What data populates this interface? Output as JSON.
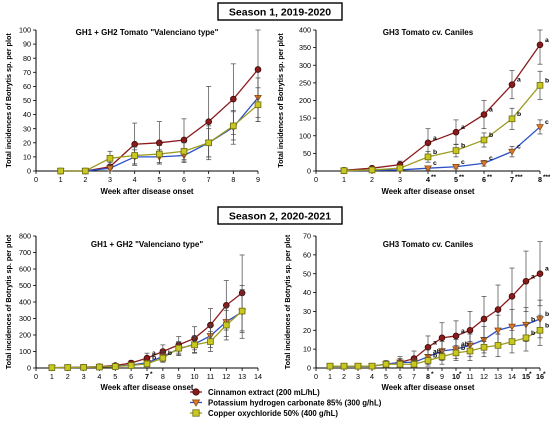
{
  "figure": {
    "season1_label": "Season 1, 2019-2020",
    "season2_label": "Season 2, 2020-2021",
    "legend": [
      {
        "label": "Cinnamon extract (200 mL/hL)",
        "color": "#8b1a1a",
        "marker": "circle"
      },
      {
        "label": "Potassium hydrogen carbonate 85% (300 g/hL)",
        "color": "#e07b28",
        "marker": "triangle-down"
      },
      {
        "label": "Copper oxychloride 50% (400 g/hL)",
        "color": "#c8c820",
        "marker": "square"
      }
    ],
    "colors": {
      "cinnamon": "#8b1a1a",
      "khco3_line": "#2b4fc9",
      "khco3_marker": "#e07b28",
      "copper_line": "#9c9c20",
      "copper_marker": "#c8c820",
      "error_bar": "#444444",
      "season_box_border": "#000000"
    }
  },
  "chart_data": [
    {
      "type": "line",
      "title": "GH1 + GH2 Tomato \"Valenciano type\"",
      "xlabel": "Week after disease onset",
      "ylabel": "Total incidences of Botrytis sp. per plot",
      "xlim": [
        0,
        9
      ],
      "ylim": [
        0,
        100
      ],
      "xticks": [
        "0",
        "1",
        "2",
        "3",
        "4",
        "5",
        "6",
        "7",
        "8",
        "9"
      ],
      "yticks": [
        "0",
        "10",
        "20",
        "30",
        "40",
        "50",
        "60",
        "70",
        "80",
        "90",
        "100"
      ],
      "x": [
        1,
        2,
        3,
        4,
        5,
        6,
        7,
        8,
        9
      ],
      "series": [
        {
          "name": "Cinnamon extract (200 mL/hL)",
          "values": [
            0,
            0,
            3,
            19,
            20,
            22,
            35,
            51,
            72
          ],
          "err": [
            0,
            0,
            3,
            15,
            15,
            15,
            25,
            25,
            37
          ]
        },
        {
          "name": "Potassium hydrogen carbonate 85% (300 g/hL)",
          "values": [
            0,
            0,
            2,
            10,
            10,
            11,
            20,
            31,
            52
          ],
          "err": [
            0,
            0,
            2,
            5,
            5,
            5,
            12,
            12,
            14
          ]
        },
        {
          "name": "Copper oxychloride 50% (400 g/hL)",
          "values": [
            0,
            0,
            9,
            11,
            12,
            14,
            20,
            32,
            47
          ],
          "err": [
            0,
            0,
            5,
            6,
            6,
            6,
            10,
            10,
            12
          ]
        }
      ],
      "annotations": []
    },
    {
      "type": "line",
      "title": "GH3 Tomato cv. Caniles",
      "xlabel": "Week after disease onset",
      "ylabel": "Total incidences of Botrytis sp. per plot",
      "xlim": [
        0,
        8
      ],
      "ylim": [
        0,
        400
      ],
      "xticks": [
        "0",
        "1",
        "2",
        "3",
        "4",
        "5",
        "6",
        "7",
        "8"
      ],
      "yticks": [
        "0",
        "50",
        "100",
        "150",
        "200",
        "250",
        "300",
        "350",
        "400"
      ],
      "xtick_marks": {
        "4": "**",
        "5": "**",
        "6": "**",
        "7": "***",
        "8": "***"
      },
      "x": [
        1,
        2,
        3,
        4,
        5,
        6,
        7,
        8
      ],
      "series": [
        {
          "name": "Cinnamon extract (200 mL/hL)",
          "values": [
            2,
            8,
            18,
            80,
            110,
            160,
            245,
            358
          ],
          "err": [
            3,
            6,
            10,
            40,
            35,
            40,
            40,
            55
          ]
        },
        {
          "name": "Potassium hydrogen carbonate 85% (300 g/hL)",
          "values": [
            1,
            2,
            3,
            8,
            12,
            22,
            55,
            125
          ],
          "err": [
            1,
            2,
            2,
            5,
            6,
            8,
            15,
            20
          ]
        },
        {
          "name": "Copper oxychloride 50% (400 g/hL)",
          "values": [
            1,
            3,
            8,
            40,
            58,
            88,
            148,
            243
          ],
          "err": [
            1,
            2,
            5,
            15,
            18,
            20,
            30,
            40
          ]
        }
      ],
      "annotations": [
        {
          "x": 4,
          "series": 0,
          "text": "a"
        },
        {
          "x": 4,
          "series": 2,
          "text": "b"
        },
        {
          "x": 4,
          "series": 1,
          "text": "c"
        },
        {
          "x": 5,
          "series": 0,
          "text": "a"
        },
        {
          "x": 5,
          "series": 2,
          "text": "b"
        },
        {
          "x": 5,
          "series": 1,
          "text": "c"
        },
        {
          "x": 6,
          "series": 0,
          "text": "a"
        },
        {
          "x": 6,
          "series": 2,
          "text": "b"
        },
        {
          "x": 6,
          "series": 1,
          "text": "c"
        },
        {
          "x": 7,
          "series": 0,
          "text": "a"
        },
        {
          "x": 7,
          "series": 2,
          "text": "b"
        },
        {
          "x": 7,
          "series": 1,
          "text": "c"
        },
        {
          "x": 8,
          "series": 0,
          "text": "a"
        },
        {
          "x": 8,
          "series": 2,
          "text": "b"
        },
        {
          "x": 8,
          "series": 1,
          "text": "c"
        }
      ]
    },
    {
      "type": "line",
      "title": "GH1 + GH2 \"Valenciano type\"",
      "xlabel": "Week after disease onset",
      "ylabel": "Total incidences of Botrytis sp. per plot",
      "xlim": [
        0,
        14
      ],
      "ylim": [
        0,
        800
      ],
      "xticks": [
        "0",
        "1",
        "2",
        "3",
        "4",
        "5",
        "6",
        "7",
        "8",
        "9",
        "10",
        "11",
        "12",
        "13",
        "14"
      ],
      "yticks": [
        "0",
        "100",
        "200",
        "300",
        "400",
        "500",
        "600",
        "700",
        "800"
      ],
      "xtick_marks": {
        "7": "*"
      },
      "x": [
        1,
        2,
        3,
        4,
        5,
        6,
        7,
        8,
        9,
        10,
        11,
        12,
        13
      ],
      "series": [
        {
          "name": "Cinnamon extract (200 mL/hL)",
          "values": [
            2,
            3,
            5,
            8,
            15,
            30,
            60,
            100,
            140,
            180,
            260,
            380,
            455
          ],
          "err": [
            2,
            3,
            4,
            5,
            8,
            15,
            30,
            40,
            50,
            70,
            100,
            150,
            230
          ]
        },
        {
          "name": "Potassium hydrogen carbonate 85% (300 g/hL)",
          "values": [
            2,
            3,
            4,
            6,
            10,
            18,
            32,
            70,
            115,
            145,
            195,
            280,
            340
          ],
          "err": [
            2,
            2,
            3,
            4,
            6,
            10,
            15,
            30,
            40,
            50,
            70,
            90,
            160
          ]
        },
        {
          "name": "Copper oxychloride 50% (400 g/hL)",
          "values": [
            2,
            3,
            4,
            6,
            9,
            15,
            25,
            60,
            120,
            140,
            160,
            260,
            345
          ],
          "err": [
            2,
            2,
            3,
            4,
            5,
            8,
            12,
            25,
            40,
            50,
            60,
            90,
            130
          ]
        }
      ],
      "annotations": [
        {
          "x": 7,
          "series": 0,
          "text": "a"
        },
        {
          "x": 7,
          "series": 1,
          "text": "b"
        },
        {
          "x": 8,
          "series": 2,
          "text": "b"
        }
      ]
    },
    {
      "type": "line",
      "title": "GH3 Tomato cv. Caniles",
      "xlabel": "Week after disease onset",
      "ylabel": "Total incidences of Botrytis sp. per plot",
      "xlim": [
        0,
        16
      ],
      "ylim": [
        0,
        70
      ],
      "xticks": [
        "0",
        "1",
        "2",
        "3",
        "4",
        "5",
        "6",
        "7",
        "8",
        "9",
        "10",
        "11",
        "12",
        "13",
        "14",
        "15",
        "16"
      ],
      "yticks": [
        "0",
        "10",
        "20",
        "30",
        "40",
        "50",
        "60",
        "70"
      ],
      "xtick_marks": {
        "8": "*",
        "10": "*",
        "15": "*",
        "16": "*"
      },
      "x": [
        1,
        2,
        3,
        4,
        5,
        6,
        7,
        8,
        9,
        10,
        11,
        12,
        13,
        14,
        15,
        16
      ],
      "series": [
        {
          "name": "Cinnamon extract (200 mL/hL)",
          "values": [
            1,
            1,
            1,
            1,
            2,
            3,
            5,
            11,
            16,
            17,
            20,
            26,
            31,
            38,
            46,
            50
          ],
          "err": [
            1,
            1,
            1,
            1,
            2,
            3,
            4,
            6,
            8,
            8,
            10,
            12,
            13,
            15,
            16,
            17
          ]
        },
        {
          "name": "Potassium hydrogen carbonate 85% (300 g/hL)",
          "values": [
            1,
            1,
            1,
            1,
            2,
            3,
            3,
            6,
            9,
            10,
            12,
            15,
            20,
            22,
            23,
            26
          ],
          "err": [
            1,
            1,
            1,
            1,
            1,
            2,
            2,
            4,
            5,
            5,
            6,
            7,
            8,
            9,
            9,
            10
          ]
        },
        {
          "name": "Copper oxychloride 50% (400 g/hL)",
          "values": [
            1,
            1,
            1,
            1,
            2,
            2,
            2,
            4,
            6,
            8,
            9,
            11,
            12,
            14,
            16,
            20
          ],
          "err": [
            1,
            1,
            1,
            1,
            1,
            2,
            2,
            3,
            4,
            4,
            5,
            5,
            6,
            6,
            7,
            8
          ]
        }
      ],
      "annotations": [
        {
          "x": 8,
          "series": 0,
          "text": "a"
        },
        {
          "x": 8,
          "series": 1,
          "text": "ab"
        },
        {
          "x": 8,
          "series": 2,
          "text": "b"
        },
        {
          "x": 10,
          "series": 0,
          "text": "a"
        },
        {
          "x": 10,
          "series": 1,
          "text": "ab"
        },
        {
          "x": 10,
          "series": 2,
          "text": "b"
        },
        {
          "x": 15,
          "series": 0,
          "text": "a"
        },
        {
          "x": 15,
          "series": 1,
          "text": "b"
        },
        {
          "x": 15,
          "series": 2,
          "text": "b"
        },
        {
          "x": 16,
          "series": 0,
          "text": "a"
        },
        {
          "x": 16,
          "series": 1,
          "text": "b"
        },
        {
          "x": 16,
          "series": 2,
          "text": "b"
        }
      ]
    }
  ]
}
